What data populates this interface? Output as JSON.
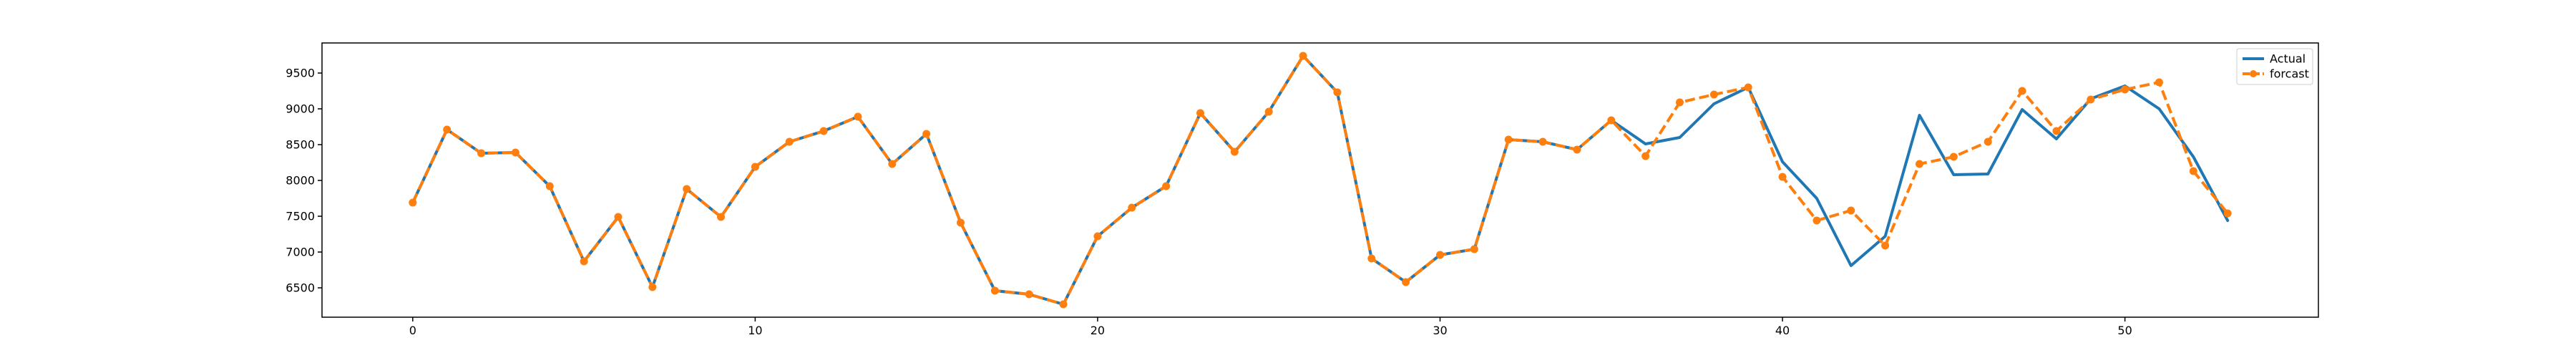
{
  "chart_data": {
    "type": "line",
    "title": "",
    "xlabel": "",
    "ylabel": "",
    "xlim": [
      -2.65,
      55.65
    ],
    "ylim": [
      6090,
      9920
    ],
    "grid": false,
    "legend_position": "top-right",
    "x_ticks": [
      0,
      10,
      20,
      30,
      40,
      50
    ],
    "y_ticks": [
      6500,
      7000,
      7500,
      8000,
      8500,
      9000,
      9500
    ],
    "x": [
      0,
      1,
      2,
      3,
      4,
      5,
      6,
      7,
      8,
      9,
      10,
      11,
      12,
      13,
      14,
      15,
      16,
      17,
      18,
      19,
      20,
      21,
      22,
      23,
      24,
      25,
      26,
      27,
      28,
      29,
      30,
      31,
      32,
      33,
      34,
      35,
      36,
      37,
      38,
      39,
      40,
      41,
      42,
      43,
      44,
      45,
      46,
      47,
      48,
      49,
      50,
      51,
      52,
      53
    ],
    "series": [
      {
        "name": "Actual",
        "color": "#1f77b4",
        "style": "solid",
        "values": [
          7690,
          8710,
          8380,
          8390,
          7920,
          6870,
          7490,
          6510,
          7880,
          7490,
          8190,
          8540,
          8690,
          8890,
          8230,
          8650,
          7410,
          6460,
          6410,
          6270,
          7220,
          7620,
          7920,
          8940,
          8400,
          8960,
          9740,
          9230,
          6910,
          6580,
          6960,
          7040,
          8570,
          8540,
          8430,
          8840,
          8510,
          8600,
          9070,
          9300,
          8260,
          7750,
          6810,
          7220,
          8910,
          8080,
          8090,
          8990,
          8580,
          9140,
          9320,
          9000,
          8330,
          7440
        ]
      },
      {
        "name": "forcast",
        "color": "#ff7f0e",
        "style": "dashed",
        "marker": "circle",
        "values": [
          7690,
          8710,
          8380,
          8390,
          7920,
          6870,
          7490,
          6510,
          7880,
          7490,
          8190,
          8540,
          8690,
          8890,
          8230,
          8650,
          7410,
          6460,
          6410,
          6270,
          7220,
          7620,
          7920,
          8940,
          8400,
          8960,
          9740,
          9230,
          6910,
          6580,
          6960,
          7040,
          8570,
          8540,
          8430,
          8840,
          8340,
          9090,
          9200,
          9300,
          8050,
          7440,
          7580,
          7090,
          8230,
          8330,
          8540,
          9250,
          8690,
          9130,
          9270,
          9370,
          8130,
          7540
        ]
      }
    ]
  }
}
